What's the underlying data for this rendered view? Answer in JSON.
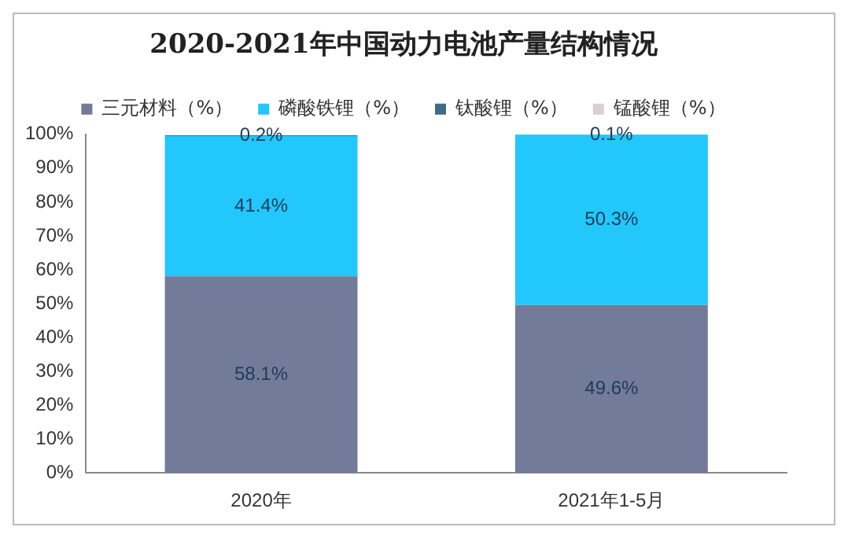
{
  "chart_data": {
    "type": "bar",
    "title": "2020-2021年中国动力电池产量结构情况",
    "categories": [
      "2020年",
      "2021年1-5月"
    ],
    "stacked": true,
    "legend": "top",
    "grid": false,
    "ylim": [
      0,
      100
    ],
    "yticks": [
      {
        "value": 0,
        "label": "0%"
      },
      {
        "value": 10,
        "label": "10%"
      },
      {
        "value": 20,
        "label": "20%"
      },
      {
        "value": 30,
        "label": "30%"
      },
      {
        "value": 40,
        "label": "40%"
      },
      {
        "value": 50,
        "label": "50%"
      },
      {
        "value": 60,
        "label": "60%"
      },
      {
        "value": 70,
        "label": "70%"
      },
      {
        "value": 80,
        "label": "80%"
      },
      {
        "value": 90,
        "label": "90%"
      },
      {
        "value": 100,
        "label": "100%"
      }
    ],
    "series": [
      {
        "name": "三元材料（%）",
        "color": "#737b9b",
        "values": [
          58.1,
          49.6
        ],
        "value_labels": [
          "58.1%",
          "49.6%"
        ]
      },
      {
        "name": "磷酸铁锂（%）",
        "color": "#22c7fb",
        "values": [
          41.4,
          50.3
        ],
        "value_labels": [
          "41.4%",
          "50.3%"
        ]
      },
      {
        "name": "钛酸锂（%）",
        "color": "#3f6b86",
        "values": [
          0.2,
          0.1
        ],
        "value_labels": [
          "0.2%",
          "0.1%"
        ]
      },
      {
        "name": "锰酸锂（%）",
        "color": "#d9cfd6",
        "values": [
          null,
          null
        ]
      }
    ]
  }
}
